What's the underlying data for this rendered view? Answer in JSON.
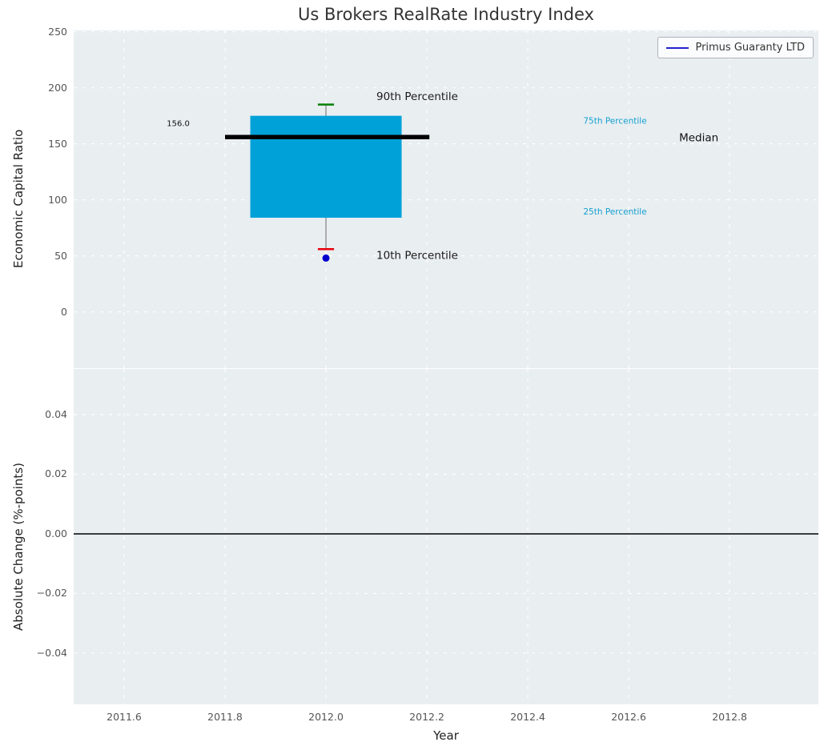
{
  "figure": {
    "title": "Us Brokers RealRate Industry Index"
  },
  "legend": {
    "label": "Primus Guaranty LTD"
  },
  "colors": {
    "axes_bg": "#e9eef1",
    "grid": "#ffffff",
    "box_fill": "#00a1d9",
    "median_line": "#000000",
    "p90_cap": "#008000",
    "p10_cap": "#e8000b",
    "whisker": "#808080",
    "company_dot": "#0000cc",
    "legend_line": "#2222cc",
    "cyan_text": "#15a0cf",
    "zero_line": "#000000",
    "tick_text": "#555555",
    "title_text": "#333333"
  },
  "chart_data": [
    {
      "type": "boxplot",
      "title": "Us Brokers RealRate Industry Index",
      "ylabel": "Economic Capital Ratio",
      "xlim": [
        2011.5,
        2012.976
      ],
      "ylim": [
        -50.3,
        251.2
      ],
      "grid": true,
      "show_xtick_labels": false,
      "yticks": [
        {
          "v": 0,
          "label": "0"
        },
        {
          "v": 50,
          "label": "50"
        },
        {
          "v": 100,
          "label": "100"
        },
        {
          "v": 150,
          "label": "150"
        },
        {
          "v": 200,
          "label": "200"
        },
        {
          "v": 250,
          "label": "250"
        }
      ],
      "xticks": [
        {
          "v": 2011.6,
          "label": "2011.6"
        },
        {
          "v": 2011.8,
          "label": "2011.8"
        },
        {
          "v": 2012.0,
          "label": "2012.0"
        },
        {
          "v": 2012.2,
          "label": "2012.2"
        },
        {
          "v": 2012.4,
          "label": "2012.4"
        },
        {
          "v": 2012.6,
          "label": "2012.6"
        },
        {
          "v": 2012.8,
          "label": "2012.8"
        }
      ],
      "box": {
        "x": 2012.0,
        "box_left": 2011.85,
        "box_right": 2012.15,
        "q1": 84,
        "q3": 175,
        "median": 156,
        "median_label": "156.0",
        "median_left": 2011.8,
        "median_right": 2012.205,
        "p90": 185,
        "p10": 56,
        "cap_half": 0.016,
        "company_value": 48
      },
      "annotations": [
        {
          "text": "90th Percentile",
          "x": 2012.1,
          "y": 192,
          "color": "#1a1a1a",
          "size": 13.5,
          "anchor": "start"
        },
        {
          "text": "10th Percentile",
          "x": 2012.1,
          "y": 50,
          "color": "#1a1a1a",
          "size": 13.5,
          "anchor": "start"
        },
        {
          "text": "75th Percentile",
          "x": 2012.51,
          "y": 170,
          "color": "#15a0cf",
          "size": 10.5,
          "anchor": "start"
        },
        {
          "text": "25th Percentile",
          "x": 2012.51,
          "y": 89,
          "color": "#15a0cf",
          "size": 10.5,
          "anchor": "start"
        },
        {
          "text": "Median",
          "x": 2012.7,
          "y": 155,
          "color": "#111111",
          "size": 13.5,
          "anchor": "start"
        },
        {
          "text": "156.0",
          "x": 2011.73,
          "y": 168,
          "color": "#111111",
          "size": 10,
          "anchor": "end"
        }
      ]
    },
    {
      "type": "line",
      "ylabel": "Absolute Change (%-points)",
      "xlabel": "Year",
      "xlim": [
        2011.5,
        2012.976
      ],
      "ylim": [
        -0.0572,
        0.0553
      ],
      "grid": true,
      "show_xtick_labels": true,
      "zero_line": 0.0,
      "yticks": [
        {
          "v": 0.04,
          "label": "0.04"
        },
        {
          "v": 0.02,
          "label": "0.02"
        },
        {
          "v": 0.0,
          "label": "0.00"
        },
        {
          "v": -0.02,
          "label": "−0.02"
        },
        {
          "v": -0.04,
          "label": "−0.04"
        }
      ],
      "xticks": [
        {
          "v": 2011.6,
          "label": "2011.6"
        },
        {
          "v": 2011.8,
          "label": "2011.8"
        },
        {
          "v": 2012.0,
          "label": "2012.0"
        },
        {
          "v": 2012.2,
          "label": "2012.2"
        },
        {
          "v": 2012.4,
          "label": "2012.4"
        },
        {
          "v": 2012.6,
          "label": "2012.6"
        },
        {
          "v": 2012.8,
          "label": "2012.8"
        }
      ]
    }
  ]
}
